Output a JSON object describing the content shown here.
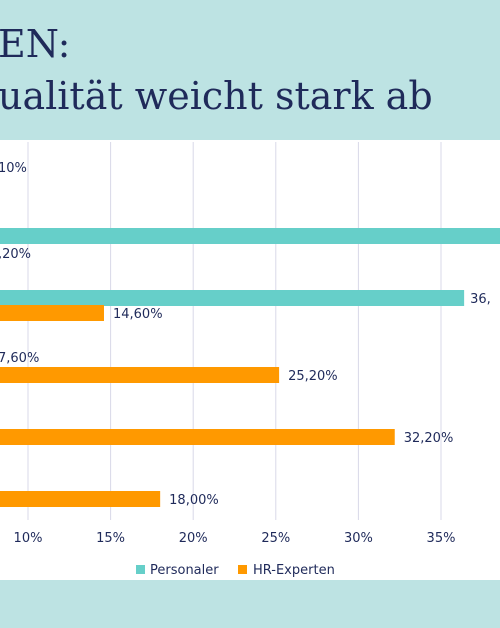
{
  "header": {
    "title_line1": "EN:",
    "title_line2": "ualität weicht stark ab"
  },
  "colors": {
    "header_bg": "#bde3e3",
    "personaler": "#66cfc9",
    "hr_experten": "#ff9900",
    "text": "#1f2a5a",
    "grid": "#d8d8e8"
  },
  "chart_data": {
    "type": "bar",
    "orientation": "horizontal",
    "x_ticks": [
      "10%",
      "15%",
      "20%",
      "25%",
      "30%",
      "35%"
    ],
    "legend": {
      "placement": "bottom",
      "entries": [
        {
          "name": "Personaler",
          "color": "#66cfc9"
        },
        {
          "name": "HR-Experten",
          "color": "#ff9900"
        }
      ]
    },
    "grid": true,
    "rows": [
      {
        "personaler": null,
        "hr_experten": null,
        "personaler_label": "",
        "hr_label": "10%"
      },
      {
        "personaler": 42.0,
        "hr_experten": null,
        "personaler_label": "",
        "hr_label": ",20%"
      },
      {
        "personaler": 36.4,
        "hr_experten": 14.6,
        "personaler_label": "36,",
        "hr_label": "14,60%"
      },
      {
        "personaler": null,
        "hr_experten": 25.2,
        "personaler_label": "7,60%",
        "hr_label": "25,20%"
      },
      {
        "personaler": null,
        "hr_experten": 32.2,
        "personaler_label": "",
        "hr_label": "32,20%"
      },
      {
        "personaler": null,
        "hr_experten": 18.0,
        "personaler_label": "",
        "hr_label": "18,00%"
      }
    ]
  }
}
